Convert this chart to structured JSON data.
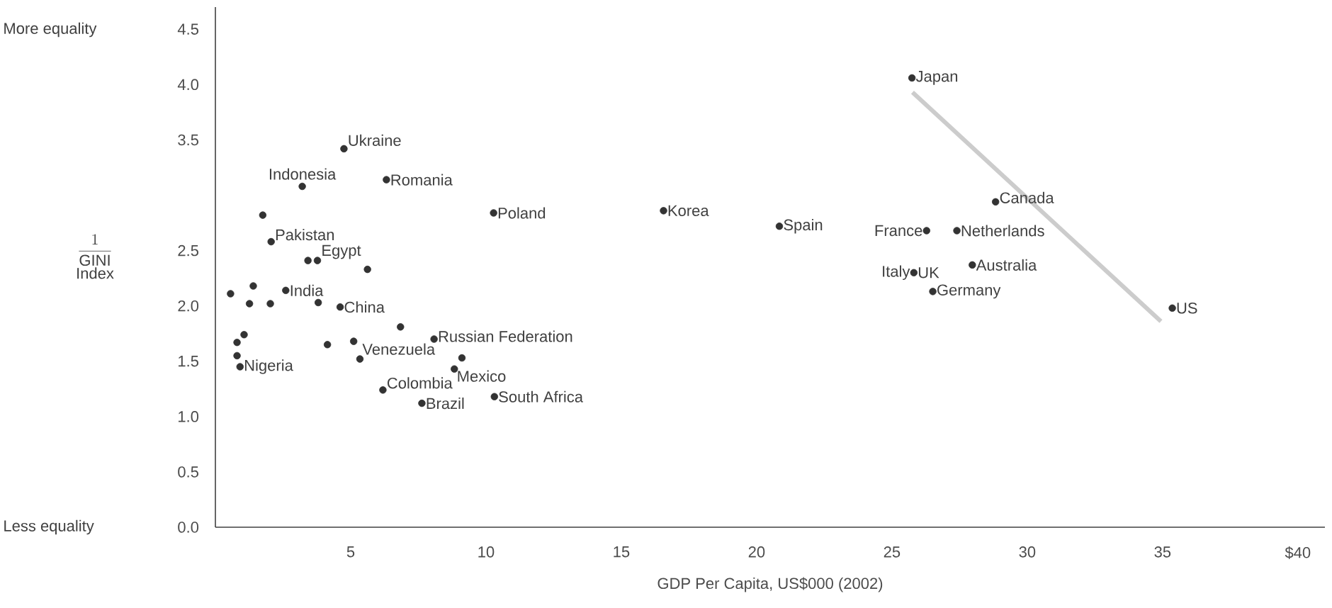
{
  "chart_data": {
    "type": "scatter",
    "xlabel": "GDP Per Capita, US$000 (2002)",
    "ylabel": "\\begin{array}{c}\\displaystyle\\frac{1}{\\mathrm{GINI}}\\\\ \\mathrm{Index}\\end{array}",
    "xlim": [
      0,
      41
    ],
    "ylim": [
      0,
      4.7
    ],
    "xticks": [
      5,
      10,
      15,
      20,
      25,
      30,
      35,
      {
        "value": 40,
        "label": "$40"
      }
    ],
    "yticks": [
      {
        "value": 0,
        "label": "0.0"
      },
      0.5,
      {
        "value": 1,
        "label": "1.0"
      },
      1.5,
      {
        "value": 2,
        "label": "2.0"
      },
      2.5,
      3.5,
      {
        "value": 4,
        "label": "4.0"
      },
      4.5
    ],
    "grid": false,
    "marker": "circle",
    "series": [
      {
        "color": "#333333",
        "x": [
          4.75,
          3.21,
          6.32,
          10.28,
          1.75,
          2.06,
          3.42,
          3.77,
          5.62,
          0.56,
          1.4,
          2.6,
          1.26,
          2.03,
          3.8,
          4.61,
          6.84,
          8.08,
          1.06,
          0.8,
          4.14,
          5.11,
          9.11,
          0.8,
          5.34,
          0.91,
          8.83,
          6.19,
          7.63,
          10.31,
          25.74,
          16.56,
          20.84,
          26.28,
          27.4,
          28.83,
          27.97,
          25.81,
          26.51,
          35.36
        ],
        "values": [
          3.42,
          3.08,
          3.14,
          2.84,
          2.82,
          2.58,
          2.41,
          2.41,
          2.33,
          2.11,
          2.18,
          2.14,
          2.02,
          2.02,
          2.03,
          1.99,
          1.81,
          1.7,
          1.74,
          1.67,
          1.65,
          1.68,
          1.53,
          1.55,
          1.52,
          1.45,
          1.43,
          1.24,
          1.12,
          1.18,
          4.06,
          2.86,
          2.72,
          2.68,
          2.68,
          2.94,
          2.37,
          2.3,
          2.13,
          1.98
        ]
      },
      {
        "type": "line",
        "color": "#cccccc",
        "marker": "none",
        "x": [
          25.76,
          34.94
        ],
        "values": [
          3.93,
          1.86
        ]
      }
    ],
    "annotations": [
      {
        "text": "Indonesia",
        "x": 3.21,
        "y": 3.08
      },
      {
        "text": "Ukraine",
        "x": 4.75,
        "y": 3.42
      },
      {
        "text": "Romania",
        "x": 6.32,
        "y": 3.14
      },
      {
        "text": "Poland",
        "x": 10.28,
        "y": 2.84
      },
      {
        "text": "Pakistan",
        "x": 2.06,
        "y": 2.58
      },
      {
        "text": "Egypt",
        "x": 3.77,
        "y": 2.41
      },
      {
        "text": "India",
        "x": 2.6,
        "y": 2.14
      },
      {
        "text": "China",
        "x": 4.61,
        "y": 1.99
      },
      {
        "text": "Russian Federation",
        "x": 8.08,
        "y": 1.7
      },
      {
        "text": "Venezuela",
        "x": 5.34,
        "y": 1.52
      },
      {
        "text": "Nigeria",
        "x": 0.91,
        "y": 1.45
      },
      {
        "text": "Mexico",
        "x": 8.83,
        "y": 1.43
      },
      {
        "text": "Colombia",
        "x": 6.19,
        "y": 1.24
      },
      {
        "text": "Brazil",
        "x": 7.63,
        "y": 1.12
      },
      {
        "text": "South Africa",
        "x": 10.31,
        "y": 1.18
      },
      {
        "text": "Japan",
        "x": 25.74,
        "y": 4.06
      },
      {
        "text": "Korea",
        "x": 16.56,
        "y": 2.86
      },
      {
        "text": "Spain",
        "x": 20.84,
        "y": 2.72
      },
      {
        "text": "France",
        "x": 26.28,
        "y": 2.68
      },
      {
        "text": "Netherlands",
        "x": 27.4,
        "y": 2.68
      },
      {
        "text": "Canada",
        "x": 28.83,
        "y": 2.94
      },
      {
        "text": "Italy",
        "x": 25.81,
        "y": 2.3
      },
      {
        "text": "UK",
        "x": 25.81,
        "y": 2.3
      },
      {
        "text": "Australia",
        "x": 27.97,
        "y": 2.37
      },
      {
        "text": "Germany",
        "x": 26.51,
        "y": 2.13
      },
      {
        "text": "US",
        "x": 35.36,
        "y": 1.98
      },
      "More equality",
      "Less equality"
    ]
  }
}
